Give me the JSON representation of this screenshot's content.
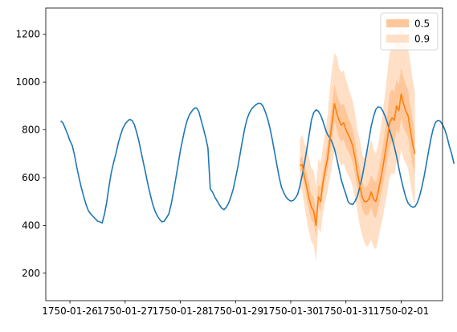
{
  "chart_data": {
    "type": "line",
    "title": "",
    "xlabel": "",
    "ylabel": "",
    "xlim": [
      "1750-01-25 13:30",
      "1750-02-01 18:00"
    ],
    "ylim": [
      85,
      1310
    ],
    "x_ticks": [
      "1750-01-26",
      "1750-01-27",
      "1750-01-28",
      "1750-01-29",
      "1750-01-30",
      "1750-01-31",
      "1750-02-01"
    ],
    "y_ticks": [
      200,
      400,
      600,
      800,
      1000,
      1200
    ],
    "grid": false,
    "legend_position": "upper right",
    "colors": {
      "observed": "#1f77b4",
      "median": "#ff7f0e",
      "band_05": "#ffc799",
      "band_09": "#ffdfc5"
    },
    "observed": {
      "start": "1750-01-25 20:00",
      "step_hours": 1,
      "values": [
        838,
        828,
        806,
        782,
        754,
        735,
        694,
        642,
        598,
        556,
        520,
        488,
        462,
        448,
        438,
        428,
        418,
        415,
        410,
        446,
        498,
        565,
        622,
        664,
        700,
        744,
        778,
        806,
        824,
        836,
        844,
        840,
        822,
        790,
        752,
        706,
        660,
        614,
        568,
        526,
        488,
        460,
        440,
        425,
        415,
        418,
        432,
        448,
        488,
        538,
        595,
        654,
        712,
        760,
        806,
        840,
        864,
        878,
        890,
        892,
        878,
        842,
        806,
        770,
        724,
        552,
        540,
        518,
        502,
        486,
        472,
        466,
        476,
        494,
        520,
        552,
        598,
        644,
        700,
        756,
        806,
        846,
        870,
        888,
        898,
        906,
        912,
        910,
        898,
        874,
        844,
        806,
        758,
        706,
        652,
        600,
        560,
        536,
        518,
        508,
        502,
        504,
        514,
        530,
        566,
        610,
        662,
        718,
        780,
        842,
        872,
        884,
        878,
        862,
        836,
        806,
        780,
        766,
        748,
        720,
        680,
        636,
        590,
        558,
        530,
        498,
        490,
        488,
        502,
        522,
        560,
        600,
        650,
        704,
        760,
        816,
        856,
        886,
        896,
        894,
        880,
        858,
        830,
        798,
        766,
        730,
        690,
        640,
        594,
        554,
        518,
        494,
        482,
        476,
        478,
        494,
        522,
        560,
        606,
        660,
        714,
        766,
        806,
        832,
        840,
        836,
        822,
        800,
        770,
        730,
        698,
        658
      ]
    },
    "forecast": {
      "start": "1750-01-30 04:00",
      "step_hours": 1,
      "median": [
        650,
        655,
        600,
        560,
        510,
        475,
        460,
        400,
        520,
        500,
        580,
        630,
        680,
        760,
        830,
        910,
        870,
        840,
        820,
        830,
        800,
        780,
        760,
        730,
        680,
        620,
        570,
        520,
        500,
        500,
        510,
        540,
        510,
        500,
        540,
        590,
        640,
        700,
        760,
        830,
        850,
        840,
        900,
        880,
        950,
        910,
        880,
        860,
        800,
        740,
        700
      ],
      "band_05": [
        [
          630,
          680
        ],
        [
          625,
          690
        ],
        [
          560,
          650
        ],
        [
          510,
          620
        ],
        [
          460,
          570
        ],
        [
          420,
          530
        ],
        [
          410,
          520
        ],
        [
          350,
          460
        ],
        [
          480,
          570
        ],
        [
          460,
          560
        ],
        [
          540,
          630
        ],
        [
          590,
          680
        ],
        [
          630,
          740
        ],
        [
          700,
          830
        ],
        [
          760,
          910
        ],
        [
          840,
          990
        ],
        [
          800,
          950
        ],
        [
          770,
          920
        ],
        [
          750,
          900
        ],
        [
          760,
          910
        ],
        [
          730,
          880
        ],
        [
          710,
          850
        ],
        [
          690,
          830
        ],
        [
          660,
          800
        ],
        [
          610,
          750
        ],
        [
          560,
          690
        ],
        [
          510,
          640
        ],
        [
          470,
          580
        ],
        [
          450,
          560
        ],
        [
          440,
          565
        ],
        [
          450,
          580
        ],
        [
          475,
          610
        ],
        [
          440,
          590
        ],
        [
          430,
          580
        ],
        [
          470,
          620
        ],
        [
          520,
          670
        ],
        [
          560,
          730
        ],
        [
          620,
          800
        ],
        [
          670,
          870
        ],
        [
          730,
          950
        ],
        [
          750,
          970
        ],
        [
          740,
          960
        ],
        [
          800,
          1010
        ],
        [
          780,
          990
        ],
        [
          850,
          1060
        ],
        [
          810,
          1020
        ],
        [
          790,
          990
        ],
        [
          770,
          970
        ],
        [
          710,
          900
        ],
        [
          650,
          840
        ],
        [
          620,
          790
        ]
      ],
      "band_09": [
        [
          560,
          760
        ],
        [
          540,
          780
        ],
        [
          480,
          740
        ],
        [
          420,
          730
        ],
        [
          370,
          680
        ],
        [
          330,
          640
        ],
        [
          320,
          630
        ],
        [
          250,
          560
        ],
        [
          390,
          680
        ],
        [
          370,
          660
        ],
        [
          450,
          730
        ],
        [
          500,
          790
        ],
        [
          540,
          860
        ],
        [
          600,
          970
        ],
        [
          650,
          1060
        ],
        [
          720,
          1120
        ],
        [
          700,
          1110
        ],
        [
          670,
          1060
        ],
        [
          650,
          1040
        ],
        [
          660,
          1050
        ],
        [
          630,
          1010
        ],
        [
          610,
          980
        ],
        [
          590,
          950
        ],
        [
          560,
          920
        ],
        [
          510,
          870
        ],
        [
          460,
          800
        ],
        [
          400,
          760
        ],
        [
          360,
          700
        ],
        [
          330,
          680
        ],
        [
          310,
          700
        ],
        [
          320,
          720
        ],
        [
          340,
          760
        ],
        [
          310,
          720
        ],
        [
          300,
          700
        ],
        [
          340,
          740
        ],
        [
          390,
          800
        ],
        [
          430,
          870
        ],
        [
          490,
          950
        ],
        [
          540,
          1040
        ],
        [
          600,
          1120
        ],
        [
          620,
          1150
        ],
        [
          610,
          1140
        ],
        [
          670,
          1200
        ],
        [
          650,
          1180
        ],
        [
          720,
          1240
        ],
        [
          680,
          1200
        ],
        [
          660,
          1170
        ],
        [
          640,
          1140
        ],
        [
          580,
          1080
        ],
        [
          520,
          1010
        ],
        [
          480,
          960
        ]
      ]
    },
    "legend": [
      {
        "label": "0.5",
        "color": "#ffc799"
      },
      {
        "label": "0.9",
        "color": "#ffdfc5"
      }
    ]
  }
}
